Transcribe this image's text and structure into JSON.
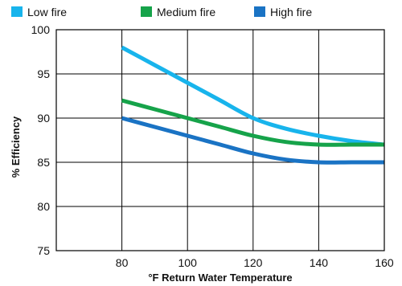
{
  "chart_data": {
    "type": "line",
    "title": "",
    "xlabel": "°F Return Water Temperature",
    "ylabel": "% Efficiency",
    "xlim": [
      60,
      160
    ],
    "ylim": [
      75,
      100
    ],
    "x_ticks": [
      80,
      100,
      120,
      140,
      160
    ],
    "y_ticks": [
      75,
      80,
      85,
      90,
      95,
      100
    ],
    "x_tick_labels": [
      "80",
      "100",
      "120",
      "140",
      "160"
    ],
    "y_tick_labels": [
      "75",
      "80",
      "85",
      "90",
      "95",
      "100"
    ],
    "grid": true,
    "legend_position": "top",
    "series": [
      {
        "name": "Low fire",
        "color": "#18b4ec",
        "x": [
          80,
          90,
          100,
          110,
          120,
          130,
          140,
          150,
          160
        ],
        "y": [
          98,
          96,
          94,
          92,
          90,
          88.8,
          88,
          87.4,
          87
        ]
      },
      {
        "name": "Medium fire",
        "color": "#16a34a",
        "x": [
          80,
          90,
          100,
          110,
          120,
          130,
          140,
          150,
          160
        ],
        "y": [
          92,
          91,
          90,
          89,
          88,
          87.3,
          87,
          87,
          87
        ]
      },
      {
        "name": "High fire",
        "color": "#1a73c4",
        "x": [
          80,
          90,
          100,
          110,
          120,
          130,
          140,
          150,
          160
        ],
        "y": [
          90,
          89,
          88,
          87,
          86,
          85.3,
          85,
          85,
          85
        ]
      }
    ]
  }
}
